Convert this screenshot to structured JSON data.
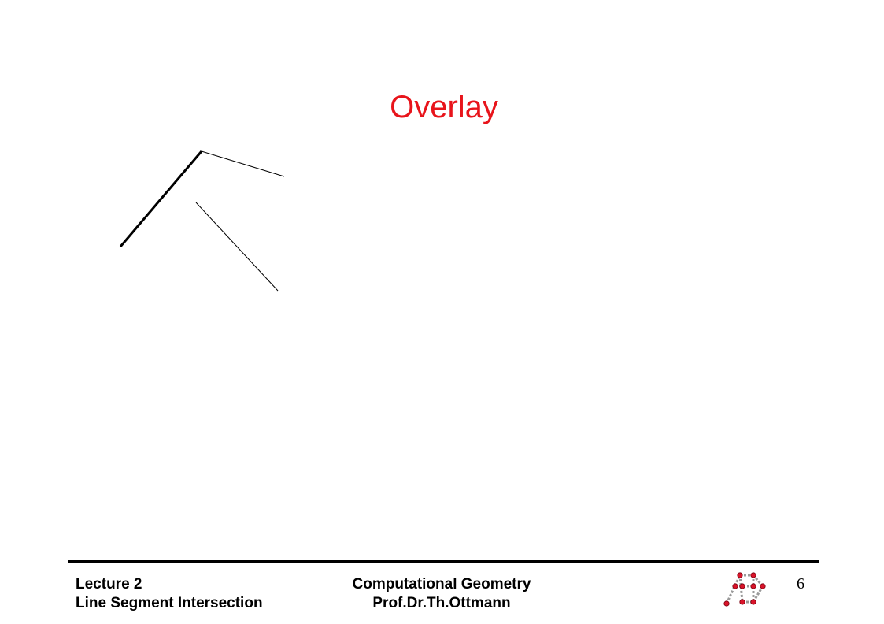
{
  "slide": {
    "title": "Overlay",
    "title_color": "#e8141b"
  },
  "footer": {
    "lecture": "Lecture 2",
    "topic": "Line Segment Intersection",
    "course": "Computational Geometry",
    "author": "Prof.Dr.Th.Ottmann",
    "page_number": "6",
    "logo_icon": "ad-logo-icon"
  }
}
